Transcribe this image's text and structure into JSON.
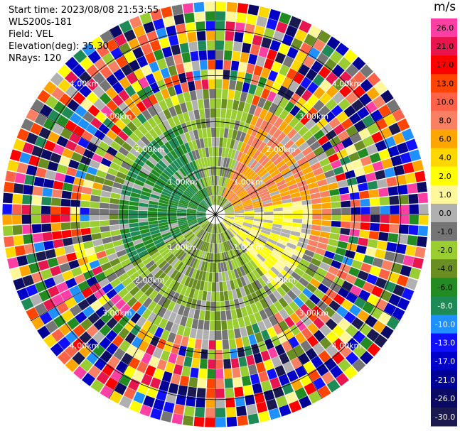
{
  "info": {
    "start_time": "Start time: 2023/08/08 21:53:55",
    "instrument": "WLS200s-181",
    "field": "Field: VEL",
    "elevation": "Elevation(deg): 35.30",
    "nrays": "NRays: 120"
  },
  "colorbar": {
    "unit": "m/s",
    "labels": [
      "26.0",
      "21.0",
      "17.0",
      "13.0",
      "10.0",
      "8.0",
      "6.0",
      "4.0",
      "2.0",
      "1.0",
      "0.0",
      "-1.0",
      "-2.0",
      "-4.0",
      "-6.0",
      "-8.0",
      "-10.0",
      "-13.0",
      "-17.0",
      "-21.0",
      "-26.0",
      "-30.0"
    ],
    "colors": [
      "#ff3fa3",
      "#e8154f",
      "#ff0000",
      "#ff4500",
      "#ff6347",
      "#fa8064",
      "#ffa500",
      "#ffd700",
      "#ffff00",
      "#fff79a",
      "#b0b0b0",
      "#757575",
      "#9acd32",
      "#6b8e23",
      "#228b22",
      "#1e8b57",
      "#1e90ff",
      "#1010ff",
      "#0000c8",
      "#000096",
      "#0a0a64",
      "#1a1a50"
    ]
  },
  "chart_data": {
    "type": "ppi",
    "field": "VEL",
    "units": "m/s",
    "nrays": 120,
    "elevation_deg": 35.3,
    "ring_labels": [
      "1.00km",
      "2.00km",
      "3.00km",
      "4.00km"
    ],
    "ring_label_values_km": [
      1.0,
      2.0,
      3.0,
      4.0
    ],
    "max_range_km": 4.6,
    "velocity_regions": [
      {
        "sector": "northeast",
        "azimuth_deg": [
          20,
          110
        ],
        "range_km": [
          0.4,
          2.5
        ],
        "typical_velocity": 8.0
      },
      {
        "sector": "east-southeast",
        "azimuth_deg": [
          80,
          140
        ],
        "range_km": [
          0.3,
          2.0
        ],
        "typical_velocity": 2.0
      },
      {
        "sector": "south",
        "azimuth_deg": [
          150,
          230
        ],
        "range_km": [
          0.3,
          2.2
        ],
        "typical_velocity": -2.0
      },
      {
        "sector": "west-northwest",
        "azimuth_deg": [
          240,
          340
        ],
        "range_km": [
          0.3,
          2.0
        ],
        "typical_velocity": -6.0
      }
    ],
    "noise_beyond_km": 2.5
  }
}
